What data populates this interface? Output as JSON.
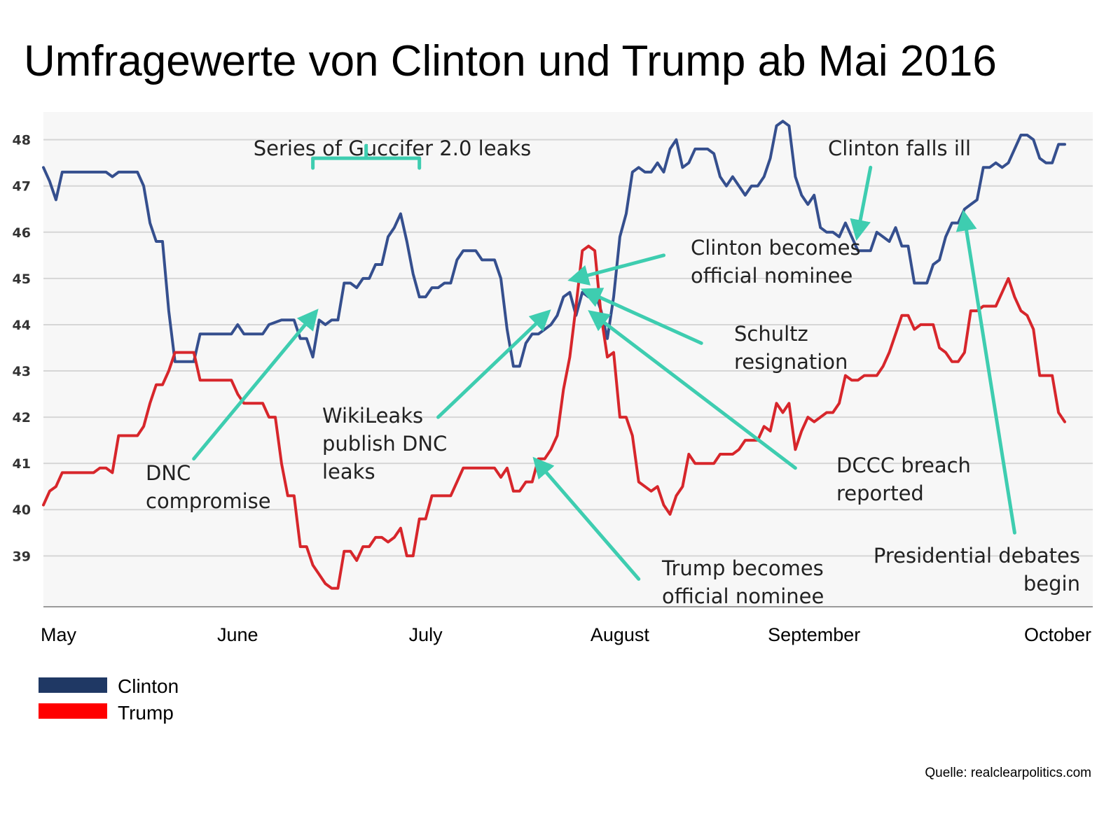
{
  "colors": {
    "clinton": "#354f8e",
    "trump": "#d7262b",
    "arrow": "#3ecdb0",
    "grid": "#d6d6d6",
    "plot_bg": "#f7f7f7",
    "legend_clinton": "#1f3864",
    "legend_trump": "#ff0000"
  },
  "chart_data": {
    "type": "line",
    "title": "Umfragewerte von Clinton und Trump ab Mai 2016",
    "xlabel": "",
    "ylabel": "",
    "ylim": [
      37.9,
      48.6
    ],
    "yticks": [
      39,
      40,
      41,
      42,
      43,
      44,
      45,
      46,
      47,
      48
    ],
    "grid": true,
    "x_tick_labels": [
      {
        "label": "May",
        "day": 0
      },
      {
        "label": "June",
        "day": 31
      },
      {
        "label": "July",
        "day": 61
      },
      {
        "label": "August",
        "day": 92
      },
      {
        "label": "September",
        "day": 123
      },
      {
        "label": "October",
        "day": 153
      }
    ],
    "series": [
      {
        "name": "Clinton",
        "points": [
          [
            0,
            47.4
          ],
          [
            1,
            47.1
          ],
          [
            2,
            46.7
          ],
          [
            3,
            47.3
          ],
          [
            5,
            47.3
          ],
          [
            10,
            47.3
          ],
          [
            11,
            47.2
          ],
          [
            12,
            47.3
          ],
          [
            15,
            47.3
          ],
          [
            16,
            47.0
          ],
          [
            17,
            46.2
          ],
          [
            18,
            45.8
          ],
          [
            19,
            45.8
          ],
          [
            20,
            44.3
          ],
          [
            21,
            43.2
          ],
          [
            24,
            43.2
          ],
          [
            25,
            43.8
          ],
          [
            30,
            43.8
          ],
          [
            31,
            44.0
          ],
          [
            32,
            43.8
          ],
          [
            35,
            43.8
          ],
          [
            36,
            44.0
          ],
          [
            38,
            44.1
          ],
          [
            40,
            44.1
          ],
          [
            41,
            43.7
          ],
          [
            42,
            43.7
          ],
          [
            43,
            43.3
          ],
          [
            44,
            44.1
          ],
          [
            45,
            44.0
          ],
          [
            46,
            44.1
          ],
          [
            47,
            44.1
          ],
          [
            48,
            44.9
          ],
          [
            49,
            44.9
          ],
          [
            50,
            44.8
          ],
          [
            51,
            45.0
          ],
          [
            52,
            45.0
          ],
          [
            53,
            45.3
          ],
          [
            54,
            45.3
          ],
          [
            55,
            45.9
          ],
          [
            56,
            46.1
          ],
          [
            57,
            46.4
          ],
          [
            58,
            45.8
          ],
          [
            59,
            45.1
          ],
          [
            60,
            44.6
          ],
          [
            61,
            44.6
          ],
          [
            62,
            44.8
          ],
          [
            63,
            44.8
          ],
          [
            64,
            44.9
          ],
          [
            65,
            44.9
          ],
          [
            66,
            45.4
          ],
          [
            67,
            45.6
          ],
          [
            69,
            45.6
          ],
          [
            70,
            45.4
          ],
          [
            72,
            45.4
          ],
          [
            73,
            45.0
          ],
          [
            74,
            43.9
          ],
          [
            75,
            43.1
          ],
          [
            76,
            43.1
          ],
          [
            77,
            43.6
          ],
          [
            78,
            43.8
          ],
          [
            79,
            43.8
          ],
          [
            80,
            43.9
          ],
          [
            81,
            44.0
          ],
          [
            82,
            44.2
          ],
          [
            83,
            44.6
          ],
          [
            84,
            44.7
          ],
          [
            85,
            44.2
          ],
          [
            86,
            44.7
          ],
          [
            87,
            44.6
          ],
          [
            88,
            44.7
          ],
          [
            89,
            44.3
          ],
          [
            90,
            43.7
          ],
          [
            91,
            44.6
          ],
          [
            92,
            45.9
          ],
          [
            93,
            46.4
          ],
          [
            94,
            47.3
          ],
          [
            95,
            47.4
          ],
          [
            96,
            47.3
          ],
          [
            97,
            47.3
          ],
          [
            98,
            47.5
          ],
          [
            99,
            47.3
          ],
          [
            100,
            47.8
          ],
          [
            101,
            48.0
          ],
          [
            102,
            47.4
          ],
          [
            103,
            47.5
          ],
          [
            104,
            47.8
          ],
          [
            106,
            47.8
          ],
          [
            107,
            47.7
          ],
          [
            108,
            47.2
          ],
          [
            109,
            47.0
          ],
          [
            110,
            47.2
          ],
          [
            111,
            47.0
          ],
          [
            112,
            46.8
          ],
          [
            113,
            47.0
          ],
          [
            114,
            47.0
          ],
          [
            115,
            47.2
          ],
          [
            116,
            47.6
          ],
          [
            117,
            48.3
          ],
          [
            118,
            48.4
          ],
          [
            119,
            48.3
          ],
          [
            120,
            47.2
          ],
          [
            121,
            46.8
          ],
          [
            122,
            46.6
          ],
          [
            123,
            46.8
          ],
          [
            124,
            46.1
          ],
          [
            125,
            46.0
          ],
          [
            126,
            46.0
          ],
          [
            127,
            45.9
          ],
          [
            128,
            46.2
          ],
          [
            129,
            45.9
          ],
          [
            130,
            45.6
          ],
          [
            132,
            45.6
          ],
          [
            133,
            46.0
          ],
          [
            134,
            45.9
          ],
          [
            135,
            45.8
          ],
          [
            136,
            46.1
          ],
          [
            137,
            45.7
          ],
          [
            138,
            45.7
          ],
          [
            139,
            44.9
          ],
          [
            141,
            44.9
          ],
          [
            142,
            45.3
          ],
          [
            143,
            45.4
          ],
          [
            144,
            45.9
          ],
          [
            145,
            46.2
          ],
          [
            146,
            46.2
          ],
          [
            147,
            46.5
          ],
          [
            148,
            46.6
          ],
          [
            149,
            46.7
          ],
          [
            150,
            47.4
          ],
          [
            151,
            47.4
          ],
          [
            152,
            47.5
          ],
          [
            153,
            47.4
          ],
          [
            154,
            47.5
          ],
          [
            155,
            47.8
          ],
          [
            156,
            48.1
          ],
          [
            157,
            48.1
          ],
          [
            158,
            48.0
          ],
          [
            159,
            47.6
          ],
          [
            160,
            47.5
          ],
          [
            161,
            47.5
          ],
          [
            162,
            47.9
          ],
          [
            163,
            47.9
          ]
        ]
      },
      {
        "name": "Trump",
        "points": [
          [
            0,
            40.1
          ],
          [
            1,
            40.4
          ],
          [
            2,
            40.5
          ],
          [
            3,
            40.8
          ],
          [
            8,
            40.8
          ],
          [
            9,
            40.9
          ],
          [
            10,
            40.9
          ],
          [
            11,
            40.8
          ],
          [
            12,
            41.6
          ],
          [
            15,
            41.6
          ],
          [
            16,
            41.8
          ],
          [
            17,
            42.3
          ],
          [
            18,
            42.7
          ],
          [
            19,
            42.7
          ],
          [
            20,
            43.0
          ],
          [
            21,
            43.4
          ],
          [
            24,
            43.4
          ],
          [
            25,
            42.8
          ],
          [
            30,
            42.8
          ],
          [
            31,
            42.5
          ],
          [
            32,
            42.3
          ],
          [
            35,
            42.3
          ],
          [
            36,
            42.0
          ],
          [
            37,
            42.0
          ],
          [
            38,
            41.0
          ],
          [
            39,
            40.3
          ],
          [
            40,
            40.3
          ],
          [
            41,
            39.2
          ],
          [
            42,
            39.2
          ],
          [
            43,
            38.8
          ],
          [
            44,
            38.6
          ],
          [
            45,
            38.4
          ],
          [
            46,
            38.3
          ],
          [
            47,
            38.3
          ],
          [
            48,
            39.1
          ],
          [
            49,
            39.1
          ],
          [
            50,
            38.9
          ],
          [
            51,
            39.2
          ],
          [
            52,
            39.2
          ],
          [
            53,
            39.4
          ],
          [
            54,
            39.4
          ],
          [
            55,
            39.3
          ],
          [
            56,
            39.4
          ],
          [
            57,
            39.6
          ],
          [
            58,
            39.0
          ],
          [
            59,
            39.0
          ],
          [
            60,
            39.8
          ],
          [
            61,
            39.8
          ],
          [
            62,
            40.3
          ],
          [
            65,
            40.3
          ],
          [
            66,
            40.6
          ],
          [
            67,
            40.9
          ],
          [
            72,
            40.9
          ],
          [
            73,
            40.7
          ],
          [
            74,
            40.9
          ],
          [
            75,
            40.4
          ],
          [
            76,
            40.4
          ],
          [
            77,
            40.6
          ],
          [
            78,
            40.6
          ],
          [
            79,
            41.1
          ],
          [
            80,
            41.1
          ],
          [
            81,
            41.3
          ],
          [
            82,
            41.6
          ],
          [
            83,
            42.6
          ],
          [
            84,
            43.3
          ],
          [
            85,
            44.4
          ],
          [
            86,
            45.6
          ],
          [
            87,
            45.7
          ],
          [
            88,
            45.6
          ],
          [
            89,
            44.2
          ],
          [
            90,
            43.3
          ],
          [
            91,
            43.4
          ],
          [
            92,
            42.0
          ],
          [
            93,
            42.0
          ],
          [
            94,
            41.6
          ],
          [
            95,
            40.6
          ],
          [
            96,
            40.5
          ],
          [
            97,
            40.4
          ],
          [
            98,
            40.5
          ],
          [
            99,
            40.1
          ],
          [
            100,
            39.9
          ],
          [
            101,
            40.3
          ],
          [
            102,
            40.5
          ],
          [
            103,
            41.2
          ],
          [
            104,
            41.0
          ],
          [
            107,
            41.0
          ],
          [
            108,
            41.2
          ],
          [
            110,
            41.2
          ],
          [
            111,
            41.3
          ],
          [
            112,
            41.5
          ],
          [
            114,
            41.5
          ],
          [
            115,
            41.8
          ],
          [
            116,
            41.7
          ],
          [
            117,
            42.3
          ],
          [
            118,
            42.1
          ],
          [
            119,
            42.3
          ],
          [
            120,
            41.3
          ],
          [
            121,
            41.7
          ],
          [
            122,
            42.0
          ],
          [
            123,
            41.9
          ],
          [
            124,
            42.0
          ],
          [
            125,
            42.1
          ],
          [
            126,
            42.1
          ],
          [
            127,
            42.3
          ],
          [
            128,
            42.9
          ],
          [
            129,
            42.8
          ],
          [
            130,
            42.8
          ],
          [
            131,
            42.9
          ],
          [
            133,
            42.9
          ],
          [
            134,
            43.1
          ],
          [
            135,
            43.4
          ],
          [
            136,
            43.8
          ],
          [
            137,
            44.2
          ],
          [
            138,
            44.2
          ],
          [
            139,
            43.9
          ],
          [
            140,
            44.0
          ],
          [
            142,
            44.0
          ],
          [
            143,
            43.5
          ],
          [
            144,
            43.4
          ],
          [
            145,
            43.2
          ],
          [
            146,
            43.2
          ],
          [
            147,
            43.4
          ],
          [
            148,
            44.3
          ],
          [
            149,
            44.3
          ],
          [
            150,
            44.4
          ],
          [
            152,
            44.4
          ],
          [
            153,
            44.7
          ],
          [
            154,
            45.0
          ],
          [
            155,
            44.6
          ],
          [
            156,
            44.3
          ],
          [
            157,
            44.2
          ],
          [
            158,
            43.9
          ],
          [
            159,
            42.9
          ],
          [
            161,
            42.9
          ],
          [
            162,
            42.1
          ],
          [
            163,
            41.9
          ]
        ]
      }
    ],
    "annotations": [
      {
        "id": "guccifer",
        "lines": [
          "Series of Guccifer 2.0 leaks"
        ],
        "bracket": [
          43,
          60,
          47.6
        ],
        "arrow": null
      },
      {
        "id": "dnc",
        "lines": [
          "DNC",
          "compromise"
        ],
        "arrow": {
          "from": [
            24,
            41.1
          ],
          "to": [
            43,
            44.2
          ]
        }
      },
      {
        "id": "wikileaks",
        "lines": [
          "WikiLeaks",
          "publish DNC",
          "leaks"
        ],
        "arrow": {
          "from": [
            63,
            42.0
          ],
          "to": [
            80,
            44.2
          ]
        }
      },
      {
        "id": "clinton_nominee",
        "lines": [
          "Clinton becomes",
          "official nominee"
        ],
        "arrow": {
          "from": [
            99,
            45.5
          ],
          "to": [
            85,
            45.0
          ]
        }
      },
      {
        "id": "schultz",
        "lines": [
          "Schultz",
          "resignation"
        ],
        "arrow": {
          "from": [
            105,
            43.6
          ],
          "to": [
            87,
            44.7
          ]
        }
      },
      {
        "id": "dccc",
        "lines": [
          "DCCC breach",
          "reported"
        ],
        "arrow": {
          "from": [
            120,
            40.9
          ],
          "to": [
            88,
            44.2
          ]
        }
      },
      {
        "id": "trump_nominee",
        "lines": [
          "Trump becomes",
          "official nominee"
        ],
        "arrow": {
          "from": [
            95,
            38.5
          ],
          "to": [
            79,
            41.0
          ]
        }
      },
      {
        "id": "clinton_ill",
        "lines": [
          "Clinton falls ill"
        ],
        "arrow": {
          "from": [
            132,
            47.4
          ],
          "to": [
            130,
            46.0
          ]
        }
      },
      {
        "id": "debates",
        "lines": [
          "Presidential debates",
          "begin"
        ],
        "arrow": {
          "from": [
            155,
            39.5
          ],
          "to": [
            147,
            46.3
          ]
        }
      }
    ],
    "legend": {
      "placement": "bottom-left",
      "entries": [
        "Clinton",
        "Trump"
      ]
    }
  },
  "source": "Quelle: realclearpolitics.com"
}
